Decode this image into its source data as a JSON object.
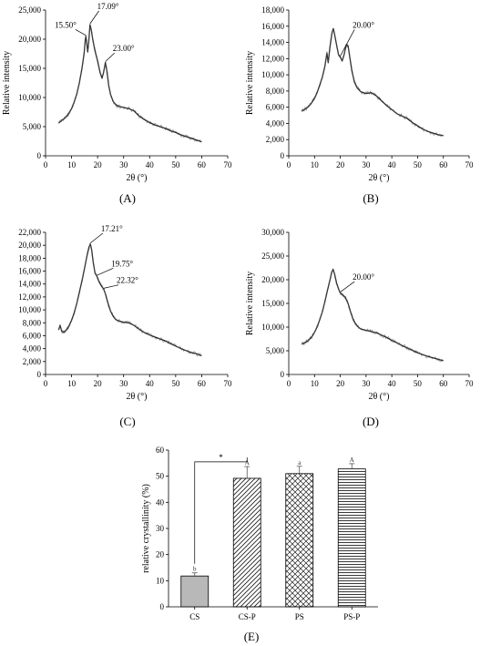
{
  "colors": {
    "bar_solid": "#b8b8b8",
    "line": "#222222",
    "text": "#000000"
  },
  "chart_data": [
    {
      "id": "A",
      "panel_label": "(A)",
      "type": "line",
      "xlabel": "2θ (°)",
      "ylabel": "Relative intensity",
      "xlim": [
        0,
        70
      ],
      "ylim": [
        0,
        25000
      ],
      "xticks": [
        0,
        10,
        20,
        30,
        40,
        50,
        60,
        70
      ],
      "yticks": [
        0,
        5000,
        10000,
        15000,
        20000,
        25000
      ],
      "ytick_labels": [
        "0",
        "5,000",
        "10,000",
        "15,000",
        "20,000",
        "25,000"
      ],
      "series": [
        {
          "points": [
            [
              5,
              5600
            ],
            [
              6,
              6000
            ],
            [
              7,
              6300
            ],
            [
              8,
              6700
            ],
            [
              9,
              7300
            ],
            [
              10,
              8100
            ],
            [
              11,
              9200
            ],
            [
              12,
              10600
            ],
            [
              13,
              12500
            ],
            [
              14,
              15000
            ],
            [
              14.8,
              17500
            ],
            [
              15.3,
              20000
            ],
            [
              15.5,
              20500
            ],
            [
              15.8,
              19500
            ],
            [
              16.2,
              17800
            ],
            [
              16.6,
              19500
            ],
            [
              17.09,
              22500
            ],
            [
              17.6,
              21500
            ],
            [
              18.2,
              19800
            ],
            [
              19,
              18000
            ],
            [
              20,
              16300
            ],
            [
              21,
              14200
            ],
            [
              21.7,
              13300
            ],
            [
              22.3,
              14300
            ],
            [
              23,
              16000
            ],
            [
              23.6,
              14500
            ],
            [
              24.3,
              12000
            ],
            [
              25,
              10500
            ],
            [
              26,
              9300
            ],
            [
              27,
              8800
            ],
            [
              28,
              8500
            ],
            [
              30,
              8300
            ],
            [
              32,
              8100
            ],
            [
              34,
              7700
            ],
            [
              36,
              6800
            ],
            [
              38,
              6200
            ],
            [
              40,
              5700
            ],
            [
              42,
              5300
            ],
            [
              44,
              5000
            ],
            [
              46,
              4700
            ],
            [
              48,
              4300
            ],
            [
              50,
              4000
            ],
            [
              52,
              3600
            ],
            [
              54,
              3300
            ],
            [
              56,
              3000
            ],
            [
              58,
              2700
            ],
            [
              60,
              2400
            ]
          ]
        }
      ],
      "annotations": [
        {
          "label": "15.50°",
          "x": 15.5,
          "y": 20500,
          "tx": 11.5,
          "ty": 21800
        },
        {
          "label": "17.09°",
          "x": 17.09,
          "y": 22500,
          "tx": 20.5,
          "ty": 25000
        },
        {
          "label": "23.00°",
          "x": 23.0,
          "y": 16000,
          "tx": 26.5,
          "ty": 17800
        }
      ]
    },
    {
      "id": "B",
      "panel_label": "(B)",
      "type": "line",
      "xlabel": "2θ (°)",
      "ylabel": "Relative intensity",
      "xlim": [
        0,
        70
      ],
      "ylim": [
        0,
        18000
      ],
      "xticks": [
        0,
        10,
        20,
        30,
        40,
        50,
        60,
        70
      ],
      "yticks": [
        0,
        2000,
        4000,
        6000,
        8000,
        10000,
        12000,
        14000,
        16000,
        18000
      ],
      "ytick_labels": [
        "0",
        "2,000",
        "4,000",
        "6,000",
        "8,000",
        "10,000",
        "12,000",
        "14,000",
        "16,000",
        "18,000"
      ],
      "series": [
        {
          "points": [
            [
              5,
              5500
            ],
            [
              6,
              5700
            ],
            [
              7,
              5900
            ],
            [
              8,
              6200
            ],
            [
              9,
              6600
            ],
            [
              10,
              7100
            ],
            [
              11,
              7800
            ],
            [
              12,
              8700
            ],
            [
              13,
              9700
            ],
            [
              14,
              11000
            ],
            [
              14.8,
              12700
            ],
            [
              15.3,
              11500
            ],
            [
              16,
              13500
            ],
            [
              16.8,
              15200
            ],
            [
              17.3,
              15700
            ],
            [
              17.8,
              15000
            ],
            [
              18.5,
              13800
            ],
            [
              19.3,
              12500
            ],
            [
              20,
              12200
            ],
            [
              20.7,
              11700
            ],
            [
              21.5,
              12500
            ],
            [
              22.3,
              13700
            ],
            [
              23,
              13600
            ],
            [
              23.7,
              12200
            ],
            [
              24.5,
              10500
            ],
            [
              25.5,
              9100
            ],
            [
              26.5,
              8400
            ],
            [
              28,
              7900
            ],
            [
              30,
              7700
            ],
            [
              32,
              7800
            ],
            [
              34,
              7400
            ],
            [
              36,
              6800
            ],
            [
              38,
              6200
            ],
            [
              40,
              5700
            ],
            [
              42,
              5200
            ],
            [
              44,
              4900
            ],
            [
              46,
              4600
            ],
            [
              48,
              4100
            ],
            [
              50,
              3700
            ],
            [
              52,
              3300
            ],
            [
              54,
              3000
            ],
            [
              56,
              2800
            ],
            [
              58,
              2600
            ],
            [
              60,
              2500
            ]
          ]
        }
      ],
      "annotations": [
        {
          "label": "20.00°",
          "x": 20.0,
          "y": 12200,
          "tx": 25.5,
          "ty": 15700
        }
      ]
    },
    {
      "id": "C",
      "panel_label": "(C)",
      "type": "line",
      "xlabel": "2θ (°)",
      "ylabel": "",
      "xlim": [
        0,
        70
      ],
      "ylim": [
        0,
        22000
      ],
      "xticks": [
        0,
        10,
        20,
        30,
        40,
        50,
        60,
        70
      ],
      "yticks": [
        0,
        2000,
        4000,
        6000,
        8000,
        10000,
        12000,
        14000,
        16000,
        18000,
        20000,
        22000
      ],
      "ytick_labels": [
        "0",
        "2,000",
        "4,000",
        "6,000",
        "8,000",
        "10,000",
        "12,000",
        "14,000",
        "16,000",
        "18,000",
        "20,000",
        "22,000"
      ],
      "series": [
        {
          "points": [
            [
              5,
              6900
            ],
            [
              5.6,
              7600
            ],
            [
              6.2,
              6700
            ],
            [
              7,
              6500
            ],
            [
              8,
              6900
            ],
            [
              9,
              7500
            ],
            [
              10,
              8400
            ],
            [
              11,
              9500
            ],
            [
              12,
              11000
            ],
            [
              13,
              12700
            ],
            [
              14,
              14500
            ],
            [
              15,
              16500
            ],
            [
              16,
              18500
            ],
            [
              16.7,
              19700
            ],
            [
              17.21,
              20200
            ],
            [
              17.7,
              19300
            ],
            [
              18.3,
              17400
            ],
            [
              19,
              15700
            ],
            [
              19.75,
              15200
            ],
            [
              20.5,
              14400
            ],
            [
              21.5,
              13700
            ],
            [
              22.32,
              13200
            ],
            [
              23,
              12500
            ],
            [
              24,
              11000
            ],
            [
              25,
              9800
            ],
            [
              26,
              9000
            ],
            [
              27,
              8500
            ],
            [
              28,
              8300
            ],
            [
              30,
              8100
            ],
            [
              32,
              8000
            ],
            [
              34,
              7600
            ],
            [
              36,
              7000
            ],
            [
              38,
              6500
            ],
            [
              40,
              6100
            ],
            [
              42,
              5800
            ],
            [
              44,
              5500
            ],
            [
              46,
              5200
            ],
            [
              48,
              4800
            ],
            [
              50,
              4400
            ],
            [
              52,
              4000
            ],
            [
              54,
              3700
            ],
            [
              56,
              3400
            ],
            [
              58,
              3200
            ],
            [
              60,
              2900
            ]
          ]
        }
      ],
      "annotations": [
        {
          "label": "17.21°",
          "x": 17.21,
          "y": 20200,
          "tx": 22,
          "ty": 22000
        },
        {
          "label": "19.75°",
          "x": 19.75,
          "y": 15200,
          "tx": 26,
          "ty": 16600
        },
        {
          "label": "22.32°",
          "x": 22.32,
          "y": 13200,
          "tx": 28,
          "ty": 14000
        }
      ]
    },
    {
      "id": "D",
      "panel_label": "(D)",
      "type": "line",
      "xlabel": "2θ (°)",
      "ylabel": "Relative intensity",
      "xlim": [
        0,
        70
      ],
      "ylim": [
        0,
        30000
      ],
      "xticks": [
        0,
        10,
        20,
        30,
        40,
        50,
        60,
        70
      ],
      "yticks": [
        0,
        5000,
        10000,
        15000,
        20000,
        25000,
        30000
      ],
      "ytick_labels": [
        "0",
        "5,000",
        "10,000",
        "15,000",
        "20,000",
        "25,000",
        "30,000"
      ],
      "series": [
        {
          "points": [
            [
              5,
              6400
            ],
            [
              6,
              6700
            ],
            [
              7,
              6900
            ],
            [
              8,
              7400
            ],
            [
              9,
              8000
            ],
            [
              10,
              8900
            ],
            [
              11,
              10000
            ],
            [
              12,
              11500
            ],
            [
              13,
              13200
            ],
            [
              14,
              15300
            ],
            [
              15,
              17700
            ],
            [
              16,
              20000
            ],
            [
              16.7,
              21600
            ],
            [
              17.2,
              22200
            ],
            [
              17.8,
              21200
            ],
            [
              18.6,
              19200
            ],
            [
              19.5,
              17800
            ],
            [
              20,
              17200
            ],
            [
              21,
              16800
            ],
            [
              22,
              16200
            ],
            [
              23,
              15000
            ],
            [
              24,
              13200
            ],
            [
              25,
              11600
            ],
            [
              26,
              10600
            ],
            [
              27,
              10000
            ],
            [
              28,
              9600
            ],
            [
              30,
              9300
            ],
            [
              32,
              9100
            ],
            [
              34,
              8800
            ],
            [
              36,
              8300
            ],
            [
              38,
              7800
            ],
            [
              40,
              7200
            ],
            [
              42,
              6700
            ],
            [
              44,
              6100
            ],
            [
              46,
              5600
            ],
            [
              48,
              5100
            ],
            [
              50,
              4600
            ],
            [
              52,
              4200
            ],
            [
              54,
              3800
            ],
            [
              56,
              3500
            ],
            [
              58,
              3200
            ],
            [
              60,
              2900
            ]
          ]
        }
      ],
      "annotations": [
        {
          "label": "20.00°",
          "x": 20.0,
          "y": 17200,
          "tx": 25.5,
          "ty": 19800
        }
      ]
    },
    {
      "id": "E",
      "panel_label": "(E)",
      "type": "bar",
      "xlabel": "",
      "ylabel": "relative crystallinity (%)",
      "categories": [
        "CS",
        "CS-P",
        "PS",
        "PS-P"
      ],
      "values": [
        11.8,
        49.2,
        51.0,
        52.8
      ],
      "errors": [
        1.2,
        4.5,
        2.8,
        2.0
      ],
      "letters": [
        "b",
        "A",
        "a",
        "A"
      ],
      "patterns": [
        "solid",
        "diag",
        "cross",
        "hlines"
      ],
      "ylim": [
        0,
        60
      ],
      "yticks": [
        0,
        10,
        20,
        30,
        40,
        50,
        60
      ],
      "significance": {
        "from": 0,
        "to": 1,
        "label": "*"
      }
    }
  ]
}
